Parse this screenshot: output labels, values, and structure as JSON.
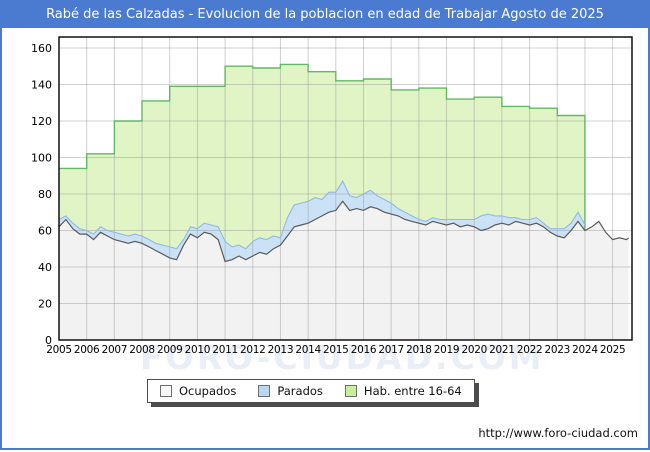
{
  "window": {
    "title": "Rabé de las Calzadas - Evolucion de la poblacion en edad de Trabajar Agosto de 2025",
    "accent_color": "#4a7bd0"
  },
  "watermark": "FORO-CIUDAD.COM",
  "footer": {
    "url": "http://www.foro-ciudad.com"
  },
  "legend": {
    "items": [
      {
        "label": "Ocupados",
        "fill": "#f7f7f7",
        "border": "#707070"
      },
      {
        "label": "Parados",
        "fill": "#b9d6f2",
        "border": "#707070"
      },
      {
        "label": "Hab. entre 16-64",
        "fill": "#c9ef9b",
        "border": "#707070"
      }
    ]
  },
  "chart_data": {
    "type": "area",
    "title": "Rabé de las Calzadas - Evolucion de la poblacion en edad de Trabajar Agosto de 2025",
    "legend_position": "bottom",
    "grid": true,
    "x_axis": {
      "min": 2005,
      "max": 2025.7,
      "ticks": [
        2005,
        2006,
        2007,
        2008,
        2009,
        2010,
        2011,
        2012,
        2013,
        2014,
        2015,
        2016,
        2017,
        2018,
        2019,
        2020,
        2021,
        2022,
        2023,
        2024,
        2025
      ]
    },
    "y_axis": {
      "min": 0,
      "max": 166,
      "ticks": [
        0,
        20,
        40,
        60,
        80,
        100,
        120,
        140,
        160
      ]
    },
    "series": [
      {
        "name": "Hab. entre 16-64",
        "type": "step_area",
        "fill": "#e0f4c6",
        "stroke": "#64b766",
        "x": [
          2005,
          2006,
          2007,
          2008,
          2009,
          2010,
          2011,
          2012,
          2013,
          2014,
          2015,
          2016,
          2017,
          2018,
          2019,
          2020,
          2021,
          2022,
          2023
        ],
        "values": [
          94,
          102,
          120,
          131,
          139,
          139,
          150,
          149,
          151,
          147,
          142,
          143,
          137,
          138,
          132,
          133,
          128,
          127,
          123
        ],
        "x_end": 2024
      },
      {
        "name": "Parados",
        "type": "band_stacked_on_ocupados",
        "fill": "#cbe2f6",
        "stroke": "#92b8e4",
        "x": [
          2005.0,
          2005.25,
          2005.5,
          2005.75,
          2006.0,
          2006.25,
          2006.5,
          2006.75,
          2007.0,
          2007.25,
          2007.5,
          2007.75,
          2008.0,
          2008.25,
          2008.5,
          2008.75,
          2009.0,
          2009.25,
          2009.5,
          2009.75,
          2010.0,
          2010.25,
          2010.5,
          2010.75,
          2011.0,
          2011.25,
          2011.5,
          2011.75,
          2012.0,
          2012.25,
          2012.5,
          2012.75,
          2013.0,
          2013.25,
          2013.5,
          2013.75,
          2014.0,
          2014.25,
          2014.5,
          2014.75,
          2015.0,
          2015.25,
          2015.5,
          2015.75,
          2016.0,
          2016.25,
          2016.5,
          2016.75,
          2017.0,
          2017.25,
          2017.5,
          2017.75,
          2018.0,
          2018.25,
          2018.5,
          2018.75,
          2019.0,
          2019.25,
          2019.5,
          2019.75,
          2020.0,
          2020.25,
          2020.5,
          2020.75,
          2021.0,
          2021.25,
          2021.5,
          2021.75,
          2022.0,
          2022.25,
          2022.5,
          2022.75,
          2023.0,
          2023.25,
          2023.5,
          2023.75,
          2024.0,
          2024.25,
          2024.5,
          2024.75,
          2025.0,
          2025.25,
          2025.5,
          2025.58
        ],
        "values": [
          4,
          2,
          3,
          3,
          2,
          3,
          3,
          3,
          4,
          4,
          4,
          4,
          4,
          4,
          4,
          5,
          6,
          6,
          3,
          4,
          5,
          5,
          5,
          7,
          11,
          7,
          6,
          6,
          8,
          8,
          8,
          7,
          4,
          10,
          12,
          12,
          12,
          12,
          9,
          11,
          10,
          11,
          8,
          6,
          9,
          9,
          7,
          7,
          6,
          4,
          4,
          3,
          2,
          2,
          2,
          2,
          3,
          2,
          4,
          3,
          4,
          8,
          8,
          5,
          4,
          4,
          2,
          2,
          3,
          3,
          2,
          2,
          4,
          5,
          4,
          5,
          3,
          null,
          null,
          null,
          null,
          null,
          null,
          null
        ]
      },
      {
        "name": "Ocupados",
        "type": "area",
        "fill": "#f2f2f2",
        "stroke": "#5a5a5a",
        "x": [
          2005.0,
          2005.25,
          2005.5,
          2005.75,
          2006.0,
          2006.25,
          2006.5,
          2006.75,
          2007.0,
          2007.25,
          2007.5,
          2007.75,
          2008.0,
          2008.25,
          2008.5,
          2008.75,
          2009.0,
          2009.25,
          2009.5,
          2009.75,
          2010.0,
          2010.25,
          2010.5,
          2010.75,
          2011.0,
          2011.25,
          2011.5,
          2011.75,
          2012.0,
          2012.25,
          2012.5,
          2012.75,
          2013.0,
          2013.25,
          2013.5,
          2013.75,
          2014.0,
          2014.25,
          2014.5,
          2014.75,
          2015.0,
          2015.25,
          2015.5,
          2015.75,
          2016.0,
          2016.25,
          2016.5,
          2016.75,
          2017.0,
          2017.25,
          2017.5,
          2017.75,
          2018.0,
          2018.25,
          2018.5,
          2018.75,
          2019.0,
          2019.25,
          2019.5,
          2019.75,
          2020.0,
          2020.25,
          2020.5,
          2020.75,
          2021.0,
          2021.25,
          2021.5,
          2021.75,
          2022.0,
          2022.25,
          2022.5,
          2022.75,
          2023.0,
          2023.25,
          2023.5,
          2023.75,
          2024.0,
          2024.25,
          2024.5,
          2024.75,
          2025.0,
          2025.25,
          2025.5,
          2025.58
        ],
        "values": [
          62,
          66,
          61,
          58,
          58,
          55,
          59,
          57,
          55,
          54,
          53,
          54,
          53,
          51,
          49,
          47,
          45,
          44,
          52,
          58,
          56,
          59,
          58,
          55,
          43,
          44,
          46,
          44,
          46,
          48,
          47,
          50,
          52,
          57,
          62,
          63,
          64,
          66,
          68,
          70,
          71,
          76,
          71,
          72,
          71,
          73,
          72,
          70,
          69,
          68,
          66,
          65,
          64,
          63,
          65,
          64,
          63,
          64,
          62,
          63,
          62,
          60,
          61,
          63,
          64,
          63,
          65,
          64,
          63,
          64,
          62,
          59,
          57,
          56,
          60,
          65,
          60,
          62,
          65,
          59,
          55,
          56,
          55,
          56
        ]
      }
    ]
  }
}
